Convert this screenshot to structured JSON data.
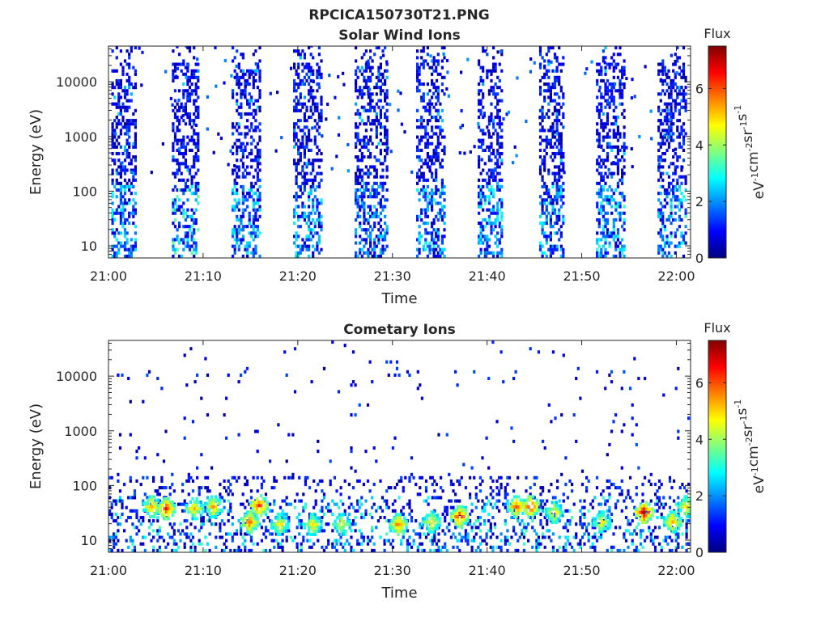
{
  "figure_title": "RPCICA150730T21.PNG",
  "chart_data": [
    {
      "type": "heatmap",
      "title": "Solar Wind Ions",
      "xlabel": "Time",
      "ylabel": "Energy (eV)",
      "x_ticks": [
        "21:00",
        "21:10",
        "21:20",
        "21:30",
        "21:40",
        "21:50",
        "22:00"
      ],
      "x_range_minutes": [
        0,
        61.5
      ],
      "y_ticks": [
        "10",
        "100",
        "1000",
        "10000"
      ],
      "y_scale": "log",
      "y_range_eV": [
        6,
        45000
      ],
      "grid": false,
      "colorbar": {
        "label": "Flux",
        "units": "eV-1cm-2sr-1s-1",
        "ticks": [
          "0",
          "2",
          "4",
          "6"
        ],
        "range": [
          0,
          7.5
        ],
        "colormap": "jet"
      },
      "bursts": [
        {
          "start_min": 0.3,
          "end_min": 2.8,
          "e_min_eV": 6,
          "e_max_eV": 40000,
          "low_energy_flux": 2.5
        },
        {
          "start_min": 6.7,
          "end_min": 9.5,
          "e_min_eV": 6,
          "e_max_eV": 40000,
          "low_energy_flux": 3.2
        },
        {
          "start_min": 13.0,
          "end_min": 16.0,
          "e_min_eV": 6,
          "e_max_eV": 40000,
          "low_energy_flux": 2.5
        },
        {
          "start_min": 19.5,
          "end_min": 22.5,
          "e_min_eV": 6,
          "e_max_eV": 40000,
          "low_energy_flux": 2.5
        },
        {
          "start_min": 26.0,
          "end_min": 29.5,
          "e_min_eV": 6,
          "e_max_eV": 40000,
          "low_energy_flux": 2.2
        },
        {
          "start_min": 32.5,
          "end_min": 35.5,
          "e_min_eV": 6,
          "e_max_eV": 40000,
          "low_energy_flux": 2.5
        },
        {
          "start_min": 39.0,
          "end_min": 41.5,
          "e_min_eV": 6,
          "e_max_eV": 40000,
          "low_energy_flux": 2.8
        },
        {
          "start_min": 45.5,
          "end_min": 48.0,
          "e_min_eV": 6,
          "e_max_eV": 40000,
          "low_energy_flux": 2.5
        },
        {
          "start_min": 51.5,
          "end_min": 54.5,
          "e_min_eV": 6,
          "e_max_eV": 40000,
          "low_energy_flux": 2.8
        },
        {
          "start_min": 58.0,
          "end_min": 61.0,
          "e_min_eV": 6,
          "e_max_eV": 40000,
          "low_energy_flux": 2.8
        }
      ]
    },
    {
      "type": "heatmap",
      "title": "Cometary Ions",
      "xlabel": "Time",
      "ylabel": "Energy (eV)",
      "x_ticks": [
        "21:00",
        "21:10",
        "21:20",
        "21:30",
        "21:40",
        "21:50",
        "22:00"
      ],
      "x_range_minutes": [
        0,
        61.5
      ],
      "y_ticks": [
        "10",
        "100",
        "1000",
        "10000"
      ],
      "y_scale": "log",
      "y_range_eV": [
        6,
        45000
      ],
      "grid": false,
      "colorbar": {
        "label": "Flux",
        "units": "eV-1cm-2sr-1s-1",
        "ticks": [
          "0",
          "2",
          "4",
          "6"
        ],
        "range": [
          0,
          7.5
        ],
        "colormap": "jet"
      },
      "hotspots": [
        {
          "time_min": 4.5,
          "energy_eV": 38,
          "flux": 5.5
        },
        {
          "time_min": 6.0,
          "energy_eV": 35,
          "flux": 6.5
        },
        {
          "time_min": 9.0,
          "energy_eV": 35,
          "flux": 5.2
        },
        {
          "time_min": 11.0,
          "energy_eV": 38,
          "flux": 5.5
        },
        {
          "time_min": 14.8,
          "energy_eV": 20,
          "flux": 6.0
        },
        {
          "time_min": 15.8,
          "energy_eV": 40,
          "flux": 6.5
        },
        {
          "time_min": 18.0,
          "energy_eV": 18,
          "flux": 5.0
        },
        {
          "time_min": 21.5,
          "energy_eV": 18,
          "flux": 5.0
        },
        {
          "time_min": 24.5,
          "energy_eV": 18,
          "flux": 4.8
        },
        {
          "time_min": 30.5,
          "energy_eV": 18,
          "flux": 5.8
        },
        {
          "time_min": 34.0,
          "energy_eV": 20,
          "flux": 5.0
        },
        {
          "time_min": 37.0,
          "energy_eV": 25,
          "flux": 6.5
        },
        {
          "time_min": 43.0,
          "energy_eV": 38,
          "flux": 6.0
        },
        {
          "time_min": 44.5,
          "energy_eV": 38,
          "flux": 6.5
        },
        {
          "time_min": 47.0,
          "energy_eV": 30,
          "flux": 5.0
        },
        {
          "time_min": 52.0,
          "energy_eV": 20,
          "flux": 5.0
        },
        {
          "time_min": 56.5,
          "energy_eV": 30,
          "flux": 7.0
        },
        {
          "time_min": 59.5,
          "energy_eV": 20,
          "flux": 5.5
        },
        {
          "time_min": 61.0,
          "energy_eV": 38,
          "flux": 5.0
        }
      ]
    }
  ]
}
